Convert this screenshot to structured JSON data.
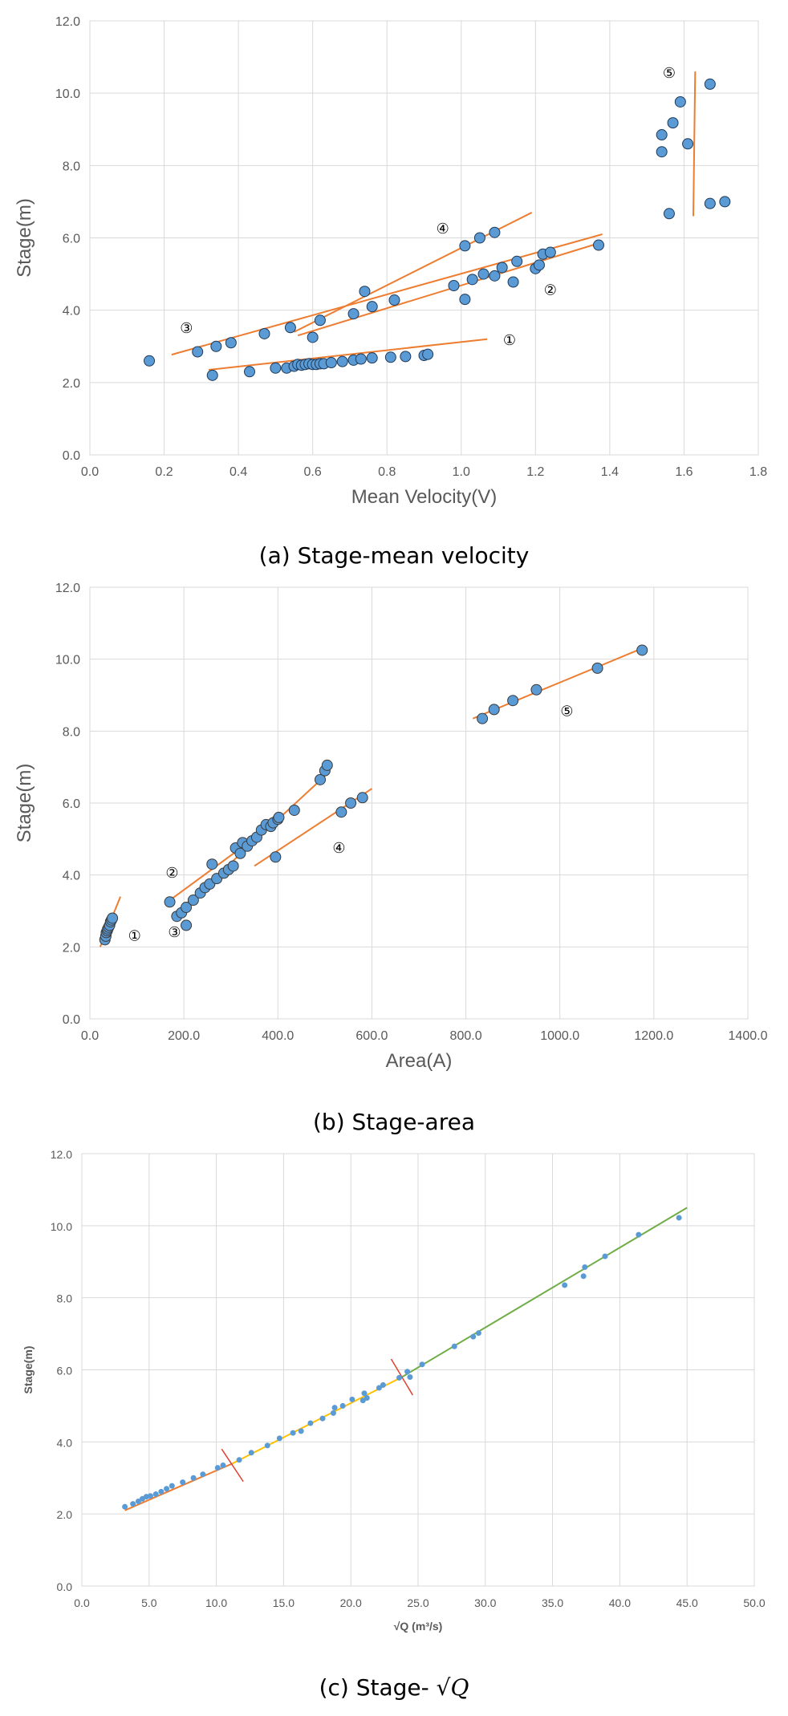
{
  "chart_data": [
    {
      "type": "scatter",
      "caption": "(a) Stage-mean velocity",
      "xlabel": "Mean Velocity(V)",
      "ylabel": "Stage(m)",
      "xlim": [
        0,
        1.8
      ],
      "ylim": [
        0,
        12
      ],
      "xticks": [
        "0.0",
        "0.2",
        "0.4",
        "0.6",
        "0.8",
        "1.0",
        "1.2",
        "1.4",
        "1.6",
        "1.8"
      ],
      "yticks": [
        "0.0",
        "2.0",
        "4.0",
        "6.0",
        "8.0",
        "10.0",
        "12.0"
      ],
      "grid": true,
      "marker_color": "#5b9bd5",
      "line_color": "#ed7d31",
      "points": [
        [
          0.16,
          2.6
        ],
        [
          0.29,
          2.85
        ],
        [
          0.33,
          2.2
        ],
        [
          0.34,
          3.0
        ],
        [
          0.38,
          3.1
        ],
        [
          0.43,
          2.3
        ],
        [
          0.47,
          3.35
        ],
        [
          0.5,
          2.4
        ],
        [
          0.53,
          2.4
        ],
        [
          0.54,
          3.52
        ],
        [
          0.55,
          2.45
        ],
        [
          0.56,
          2.5
        ],
        [
          0.57,
          2.48
        ],
        [
          0.58,
          2.5
        ],
        [
          0.59,
          2.52
        ],
        [
          0.6,
          2.5
        ],
        [
          0.6,
          3.25
        ],
        [
          0.61,
          2.5
        ],
        [
          0.62,
          2.52
        ],
        [
          0.62,
          3.72
        ],
        [
          0.63,
          2.52
        ],
        [
          0.65,
          2.55
        ],
        [
          0.68,
          2.58
        ],
        [
          0.71,
          2.62
        ],
        [
          0.71,
          3.9
        ],
        [
          0.73,
          2.65
        ],
        [
          0.74,
          4.52
        ],
        [
          0.76,
          2.68
        ],
        [
          0.76,
          4.1
        ],
        [
          0.81,
          2.7
        ],
        [
          0.82,
          4.28
        ],
        [
          0.85,
          2.72
        ],
        [
          0.9,
          2.75
        ],
        [
          0.91,
          2.78
        ],
        [
          0.98,
          4.68
        ],
        [
          1.01,
          4.3
        ],
        [
          1.01,
          5.78
        ],
        [
          1.03,
          4.85
        ],
        [
          1.05,
          6.0
        ],
        [
          1.06,
          5.0
        ],
        [
          1.09,
          4.95
        ],
        [
          1.09,
          6.15
        ],
        [
          1.11,
          5.18
        ],
        [
          1.14,
          4.78
        ],
        [
          1.15,
          5.35
        ],
        [
          1.2,
          5.15
        ],
        [
          1.21,
          5.25
        ],
        [
          1.22,
          5.55
        ],
        [
          1.24,
          5.6
        ],
        [
          1.37,
          5.8
        ],
        [
          1.54,
          8.38
        ],
        [
          1.54,
          8.85
        ],
        [
          1.56,
          6.67
        ],
        [
          1.57,
          9.18
        ],
        [
          1.59,
          9.76
        ],
        [
          1.61,
          8.6
        ],
        [
          1.67,
          10.25
        ],
        [
          1.67,
          6.95
        ],
        [
          1.71,
          7.0
        ]
      ],
      "trend_lines": [
        {
          "id": "1",
          "from": [
            0.32,
            2.35
          ],
          "to": [
            1.07,
            3.2
          ]
        },
        {
          "id": "2",
          "from": [
            0.56,
            3.3
          ],
          "to": [
            1.37,
            5.85
          ]
        },
        {
          "id": "3",
          "from": [
            0.22,
            2.77
          ],
          "to": [
            1.38,
            6.1
          ]
        },
        {
          "id": "4",
          "from": [
            0.55,
            3.4
          ],
          "to": [
            1.19,
            6.7
          ]
        },
        {
          "id": "5",
          "from": [
            1.625,
            6.6
          ],
          "to": [
            1.63,
            10.6
          ]
        }
      ],
      "annotations": [
        {
          "label": "①",
          "x": 1.13,
          "y": 3.22
        },
        {
          "label": "②",
          "x": 1.24,
          "y": 4.6
        },
        {
          "label": "③",
          "x": 0.26,
          "y": 3.55
        },
        {
          "label": "④",
          "x": 0.95,
          "y": 6.3
        },
        {
          "label": "⑤",
          "x": 1.56,
          "y": 10.6
        }
      ]
    },
    {
      "type": "scatter",
      "caption": "(b) Stage-area",
      "xlabel": "Area(A)",
      "ylabel": "Stage(m)",
      "xlim": [
        0,
        1400
      ],
      "ylim": [
        0,
        12
      ],
      "xticks": [
        "0.0",
        "200.0",
        "400.0",
        "600.0",
        "800.0",
        "1000.0",
        "1200.0",
        "1400.0"
      ],
      "yticks": [
        "0.0",
        "2.0",
        "4.0",
        "6.0",
        "8.0",
        "10.0",
        "12.0"
      ],
      "grid": true,
      "marker_color": "#5b9bd5",
      "line_color": "#ed7d31",
      "points": [
        [
          32,
          2.2
        ],
        [
          34,
          2.3
        ],
        [
          35,
          2.4
        ],
        [
          37,
          2.45
        ],
        [
          38,
          2.5
        ],
        [
          40,
          2.55
        ],
        [
          42,
          2.6
        ],
        [
          44,
          2.7
        ],
        [
          46,
          2.75
        ],
        [
          48,
          2.8
        ],
        [
          170,
          3.25
        ],
        [
          185,
          2.85
        ],
        [
          195,
          2.95
        ],
        [
          205,
          3.1
        ],
        [
          205,
          2.6
        ],
        [
          220,
          3.3
        ],
        [
          235,
          3.5
        ],
        [
          245,
          3.65
        ],
        [
          255,
          3.75
        ],
        [
          260,
          4.3
        ],
        [
          270,
          3.9
        ],
        [
          285,
          4.05
        ],
        [
          295,
          4.15
        ],
        [
          305,
          4.25
        ],
        [
          310,
          4.75
        ],
        [
          320,
          4.6
        ],
        [
          325,
          4.9
        ],
        [
          335,
          4.8
        ],
        [
          345,
          4.95
        ],
        [
          355,
          5.05
        ],
        [
          365,
          5.25
        ],
        [
          375,
          5.4
        ],
        [
          385,
          5.35
        ],
        [
          390,
          5.45
        ],
        [
          395,
          4.5
        ],
        [
          400,
          5.55
        ],
        [
          402,
          5.6
        ],
        [
          435,
          5.8
        ],
        [
          490,
          6.65
        ],
        [
          500,
          6.9
        ],
        [
          505,
          7.05
        ],
        [
          535,
          5.75
        ],
        [
          555,
          6.0
        ],
        [
          580,
          6.15
        ],
        [
          835,
          8.35
        ],
        [
          860,
          8.6
        ],
        [
          900,
          8.85
        ],
        [
          950,
          9.15
        ],
        [
          1080,
          9.75
        ],
        [
          1175,
          10.25
        ]
      ],
      "trend_lines": [
        {
          "id": "1",
          "from": [
            22,
            2.0
          ],
          "to": [
            65,
            3.4
          ]
        },
        {
          "id": "2",
          "from": [
            165,
            3.25
          ],
          "to": [
            410,
            5.6
          ]
        },
        {
          "id": "3",
          "from": [
            185,
            2.95
          ],
          "to": [
            500,
            6.75
          ]
        },
        {
          "id": "4",
          "from": [
            350,
            4.25
          ],
          "to": [
            600,
            6.4
          ]
        },
        {
          "id": "5",
          "from": [
            815,
            8.35
          ],
          "to": [
            1175,
            10.3
          ]
        }
      ],
      "annotations": [
        {
          "label": "①",
          "x": 95,
          "y": 2.35
        },
        {
          "label": "②",
          "x": 175,
          "y": 4.1
        },
        {
          "label": "③",
          "x": 180,
          "y": 2.45
        },
        {
          "label": "④",
          "x": 530,
          "y": 4.8
        },
        {
          "label": "⑤",
          "x": 1015,
          "y": 8.6
        }
      ]
    },
    {
      "type": "scatter",
      "caption": "(c) Stage- ",
      "caption_math": "√Q",
      "xlabel": "√Q (m³/s)",
      "ylabel": "Stage(m)",
      "xlim": [
        0,
        50
      ],
      "ylim": [
        0,
        12
      ],
      "xticks": [
        "0.0",
        "5.0",
        "10.0",
        "15.0",
        "20.0",
        "25.0",
        "30.0",
        "35.0",
        "40.0",
        "45.0",
        "50.0"
      ],
      "yticks": [
        "0.0",
        "2.0",
        "4.0",
        "6.0",
        "8.0",
        "10.0",
        "12.0"
      ],
      "grid": true,
      "marker_color": "#5b9bd5",
      "points": [
        [
          3.2,
          2.2
        ],
        [
          3.8,
          2.28
        ],
        [
          4.2,
          2.35
        ],
        [
          4.5,
          2.42
        ],
        [
          4.8,
          2.48
        ],
        [
          5.1,
          2.5
        ],
        [
          5.5,
          2.55
        ],
        [
          5.9,
          2.62
        ],
        [
          6.3,
          2.7
        ],
        [
          6.7,
          2.78
        ],
        [
          7.5,
          2.88
        ],
        [
          8.3,
          3.0
        ],
        [
          9.0,
          3.1
        ],
        [
          10.1,
          3.28
        ],
        [
          10.5,
          3.35
        ],
        [
          11.7,
          3.5
        ],
        [
          12.6,
          3.7
        ],
        [
          13.8,
          3.9
        ],
        [
          14.7,
          4.1
        ],
        [
          15.7,
          4.25
        ],
        [
          16.3,
          4.3
        ],
        [
          17.0,
          4.52
        ],
        [
          17.9,
          4.65
        ],
        [
          18.7,
          4.8
        ],
        [
          18.8,
          4.95
        ],
        [
          19.4,
          5.0
        ],
        [
          20.1,
          5.18
        ],
        [
          20.9,
          5.15
        ],
        [
          21.0,
          5.35
        ],
        [
          21.2,
          5.22
        ],
        [
          22.1,
          5.5
        ],
        [
          22.4,
          5.58
        ],
        [
          23.6,
          5.78
        ],
        [
          24.2,
          5.95
        ],
        [
          24.4,
          5.8
        ],
        [
          25.3,
          6.15
        ],
        [
          27.7,
          6.65
        ],
        [
          29.1,
          6.92
        ],
        [
          29.5,
          7.02
        ],
        [
          35.9,
          8.35
        ],
        [
          37.3,
          8.6
        ],
        [
          37.4,
          8.85
        ],
        [
          38.9,
          9.15
        ],
        [
          41.4,
          9.75
        ],
        [
          44.4,
          10.22
        ]
      ],
      "segments": [
        {
          "color": "#ed7d31",
          "from": [
            3.2,
            2.1
          ],
          "to": [
            11.2,
            3.4
          ]
        },
        {
          "color": "#ffc000",
          "from": [
            11.2,
            3.4
          ],
          "to": [
            23.8,
            5.8
          ]
        },
        {
          "color": "#70ad47",
          "from": [
            23.8,
            5.8
          ],
          "to": [
            45.0,
            10.5
          ]
        }
      ],
      "break_marks": [
        {
          "color": "#e04030",
          "from": [
            10.4,
            3.8
          ],
          "to": [
            12.0,
            2.9
          ]
        },
        {
          "color": "#e04030",
          "from": [
            23.0,
            6.3
          ],
          "to": [
            24.6,
            5.3
          ]
        }
      ]
    }
  ]
}
